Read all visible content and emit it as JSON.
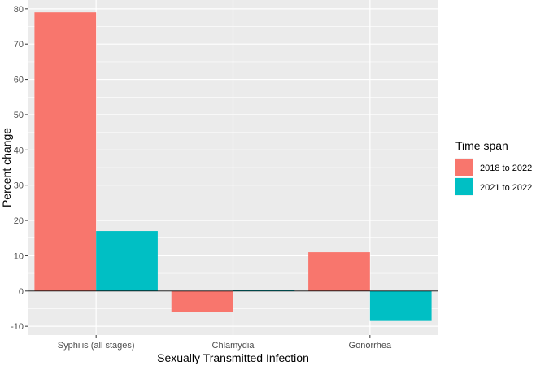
{
  "chart_data": {
    "type": "bar",
    "title": "",
    "xlabel": "Sexually Transmitted Infection",
    "ylabel": "Percent change",
    "categories": [
      "Syphilis (all stages)",
      "Chlamydia",
      "Gonorrhea"
    ],
    "series": [
      {
        "name": "2018 to 2022",
        "color": "#F8766D",
        "values": [
          79,
          -6,
          11
        ]
      },
      {
        "name": "2021 to 2022",
        "color": "#00BFC4",
        "values": [
          17,
          0.3,
          -8.5
        ]
      }
    ],
    "ylim": [
      -12.5,
      82.5
    ],
    "yticks": [
      -10,
      0,
      10,
      20,
      30,
      40,
      50,
      60,
      70,
      80
    ],
    "grid": true,
    "zero_line": true,
    "legend": {
      "title": "Time span",
      "position": "right"
    },
    "colors": {
      "panel": "#EBEBEB",
      "grid": "#FFFFFF",
      "axis_text": "#4D4D4D",
      "zero_line": "#000000"
    }
  }
}
